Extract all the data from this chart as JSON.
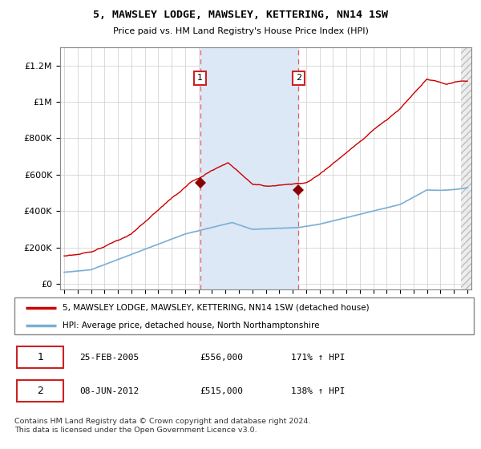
{
  "title": "5, MAWSLEY LODGE, MAWSLEY, KETTERING, NN14 1SW",
  "subtitle": "Price paid vs. HM Land Registry's House Price Index (HPI)",
  "ylabel_ticks": [
    "£0",
    "£200K",
    "£400K",
    "£600K",
    "£800K",
    "£1M",
    "£1.2M"
  ],
  "ytick_values": [
    0,
    200000,
    400000,
    600000,
    800000,
    1000000,
    1200000
  ],
  "ylim": [
    -30000,
    1300000
  ],
  "sale1_price": 556000,
  "sale1_year": 2005.12,
  "sale2_price": 515000,
  "sale2_year": 2012.44,
  "legend_line1": "5, MAWSLEY LODGE, MAWSLEY, KETTERING, NN14 1SW (detached house)",
  "legend_line2": "HPI: Average price, detached house, North Northamptonshire",
  "footer1": "Contains HM Land Registry data © Crown copyright and database right 2024.",
  "footer2": "This data is licensed under the Open Government Licence v3.0.",
  "table_row1": [
    "1",
    "25-FEB-2005",
    "£556,000",
    "171% ↑ HPI"
  ],
  "table_row2": [
    "2",
    "08-JUN-2012",
    "£515,000",
    "138% ↑ HPI"
  ],
  "hpi_color": "#7bafd4",
  "price_color": "#cc0000",
  "sale_marker_color": "#8b0000",
  "shade_color": "#dce8f5",
  "grid_color": "#cccccc",
  "dashed_line_color": "#e06060",
  "hatch_region_start": 2024.5,
  "xmin": 1994.7,
  "xmax": 2025.3
}
